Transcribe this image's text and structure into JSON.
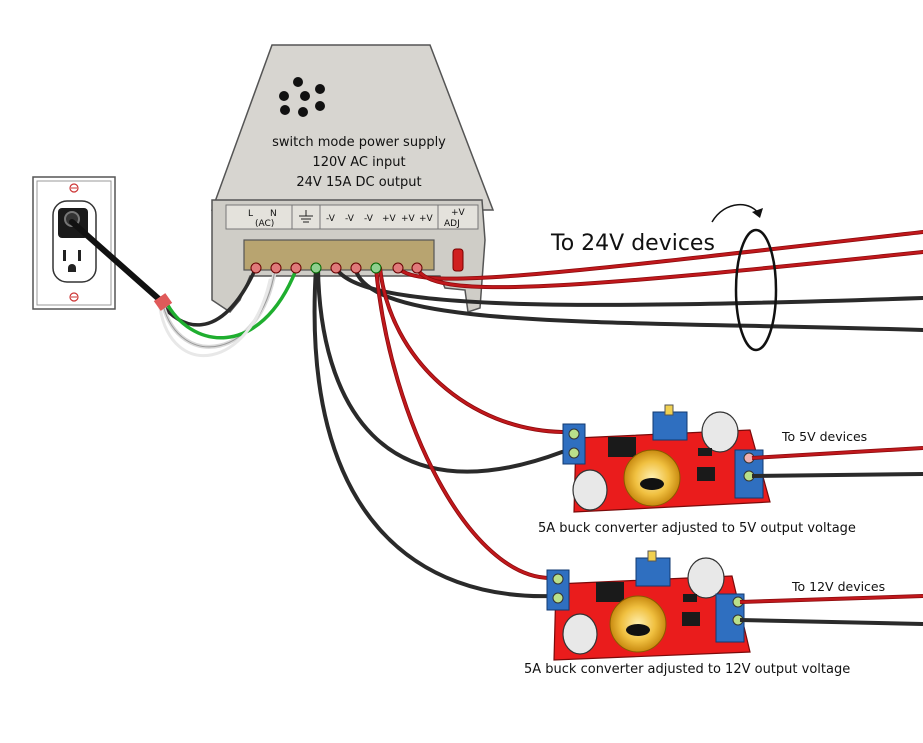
{
  "psu": {
    "line1": "switch mode power supply",
    "line2": "120V AC input",
    "line3": "24V 15A DC output",
    "terminals": {
      "L": "L",
      "N": "N",
      "ac": "(AC)",
      "v1": "-V",
      "v2": "-V",
      "v3": "-V",
      "p1": "+V",
      "p2": "+V",
      "p3": "+V",
      "adj_top": "+V",
      "adj_bottom": "ADJ"
    }
  },
  "labels": {
    "to_24v": "To 24V devices",
    "to_5v": "To 5V devices",
    "to_12v": "To 12V devices",
    "converter_5v": "5A buck converter adjusted to 5V output voltage",
    "converter_12v": "5A buck converter adjusted to 12V output voltage"
  },
  "colors": {
    "red_wire": "#c0181c",
    "black_wire": "#2a2a2a",
    "green_wire": "#1fae2f",
    "white_wire": "#d9d9d9",
    "psu_body": "#d7d5d0",
    "board_red": "#ea1c1c",
    "terminal_blue": "#2f6fc0"
  },
  "icons": {
    "outlet": "wall-outlet-icon",
    "ground": "ground-symbol-icon"
  }
}
